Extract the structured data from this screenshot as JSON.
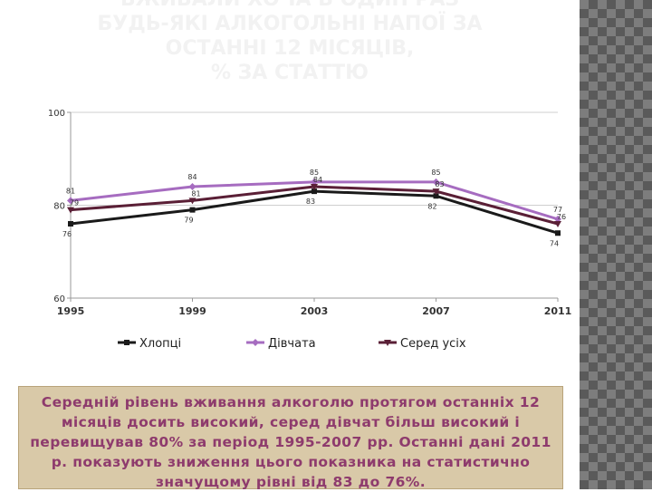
{
  "slide": {
    "title_lines": [
      "ВЖИВАЛИ ХОЧА Б ОДИН РАЗ",
      "БУДЬ-ЯКІ АЛКОГОЛЬНІ НАПОЇ ЗА",
      "ОСТАННІ 12 МІСЯЦІВ,",
      "% ЗА СТАТТЮ"
    ],
    "caption": "Середній рівень вживання алкоголю протягом останніх 12 місяців досить високий, серед дівчат більш високий і перевищував 80% за період 1995-2007 рр. Останні дані 2011 р. показують зниження цього показника на статистично значущому рівні від 83 до 76%.",
    "colors": {
      "background": "#ffffff",
      "caption_bg": "#d9c9a8",
      "caption_text": "#8e3b6d",
      "title": "#f2f2f2"
    }
  },
  "chart_data": {
    "type": "line",
    "title": "",
    "xlabel": "",
    "ylabel": "",
    "x": [
      1995,
      1999,
      2003,
      2007,
      2011
    ],
    "ylim": [
      60,
      100
    ],
    "yticks": [
      60,
      80,
      100
    ],
    "grid": true,
    "legend_position": "bottom",
    "series": [
      {
        "name": "Хлопці",
        "values": [
          76,
          79,
          83,
          82,
          74
        ],
        "color": "#1a1a1a",
        "marker": "square"
      },
      {
        "name": "Дівчата",
        "values": [
          81,
          84,
          85,
          85,
          77
        ],
        "color": "#a66cc0",
        "marker": "diamond"
      },
      {
        "name": "Серед усіх",
        "values": [
          79,
          81,
          84,
          83,
          76
        ],
        "color": "#5a1f36",
        "marker": "triangle-down"
      }
    ]
  }
}
